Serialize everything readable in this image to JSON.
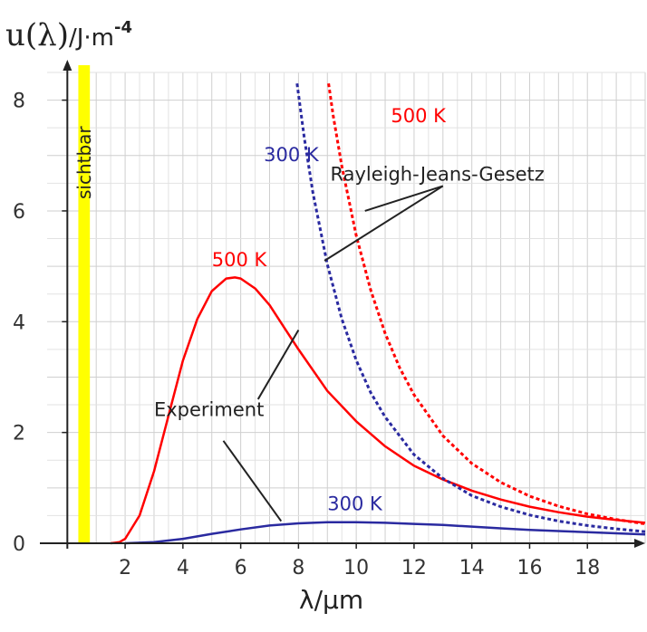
{
  "chart_data": {
    "type": "line",
    "title": "",
    "xlabel": "λ/µm",
    "ylabel_symbol": "u(λ)",
    "ylabel_unit": "/J·m",
    "ylabel_exponent": "-4",
    "xlim": [
      -0.7,
      20
    ],
    "ylim": [
      0,
      8.5
    ],
    "grid": true,
    "x_ticks": [
      2,
      4,
      6,
      8,
      10,
      12,
      14,
      16,
      18
    ],
    "y_ticks": [
      0,
      2,
      4,
      6,
      8
    ],
    "x_tick_labels": [
      "2",
      "4",
      "6",
      "8",
      "10",
      "12",
      "14",
      "16",
      "18"
    ],
    "y_tick_labels": [
      "0",
      "2",
      "4",
      "6",
      "8"
    ],
    "visible_band": {
      "label": "sichtbar",
      "x_range": [
        0.38,
        0.78
      ],
      "color": "#ffff00"
    },
    "series": [
      {
        "name": "500 K",
        "group": "Experiment",
        "style": "solid",
        "color": "#ff0000",
        "x": [
          1.5,
          1.8,
          2,
          2.5,
          3,
          3.5,
          4,
          4.5,
          5,
          5.5,
          5.8,
          6,
          6.5,
          7,
          7.5,
          8,
          9,
          10,
          11,
          12,
          13,
          14,
          15,
          16,
          17,
          18,
          19,
          20
        ],
        "y": [
          0,
          0.02,
          0.08,
          0.5,
          1.3,
          2.3,
          3.3,
          4.05,
          4.55,
          4.78,
          4.8,
          4.78,
          4.6,
          4.3,
          3.9,
          3.5,
          2.75,
          2.2,
          1.75,
          1.4,
          1.15,
          0.95,
          0.79,
          0.66,
          0.56,
          0.48,
          0.42,
          0.37
        ]
      },
      {
        "name": "300 K",
        "group": "Experiment",
        "style": "solid",
        "color": "#2a2aa0",
        "x": [
          2,
          3,
          4,
          5,
          6,
          7,
          8,
          9,
          10,
          11,
          12,
          13,
          14,
          15,
          16,
          17,
          18,
          19,
          20
        ],
        "y": [
          0,
          0.02,
          0.08,
          0.17,
          0.25,
          0.32,
          0.36,
          0.38,
          0.38,
          0.37,
          0.35,
          0.33,
          0.3,
          0.27,
          0.24,
          0.22,
          0.2,
          0.18,
          0.16
        ]
      },
      {
        "name": "500 K",
        "group": "Rayleigh-Jeans-Gesetz",
        "style": "dotted",
        "color": "#ff0000",
        "x": [
          9.04,
          9.2,
          9.5,
          10,
          10.5,
          11,
          11.5,
          12,
          13,
          14,
          15,
          16,
          17,
          18,
          19,
          20
        ],
        "y": [
          8.3,
          7.72,
          6.81,
          5.55,
          4.57,
          3.79,
          3.17,
          2.68,
          1.94,
          1.44,
          1.1,
          0.85,
          0.67,
          0.53,
          0.43,
          0.35
        ]
      },
      {
        "name": "300 K",
        "group": "Rayleigh-Jeans-Gesetz",
        "style": "dotted",
        "color": "#2a2aa0",
        "x": [
          7.95,
          8.2,
          8.5,
          9,
          9.5,
          10,
          10.5,
          11,
          12,
          13,
          14,
          15,
          16,
          17,
          18,
          19,
          20
        ],
        "y": [
          8.3,
          7.32,
          6.33,
          5.03,
          4.05,
          3.3,
          2.72,
          2.28,
          1.6,
          1.17,
          0.86,
          0.66,
          0.51,
          0.4,
          0.32,
          0.26,
          0.21
        ]
      }
    ],
    "annotations": [
      {
        "text": "500 K",
        "series_group": "Rayleigh-Jeans-Gesetz",
        "color": "#ff0000",
        "x": 11.2,
        "y": 7.6
      },
      {
        "text": "300 K",
        "series_group": "Rayleigh-Jeans-Gesetz",
        "color": "#2a2aa0",
        "x": 6.8,
        "y": 6.9
      },
      {
        "text": "Rayleigh-Jeans-Gesetz",
        "color": "#222222",
        "x": 9.1,
        "y": 6.55,
        "pointers": [
          [
            13.0,
            6.45,
            10.3,
            6.0
          ],
          [
            13.0,
            6.45,
            8.9,
            5.1
          ]
        ]
      },
      {
        "text": "500 K",
        "series_group": "Experiment",
        "color": "#ff0000",
        "x": 5.0,
        "y": 5.0
      },
      {
        "text": "Experiment",
        "color": "#222222",
        "x": 3.0,
        "y": 2.3,
        "pointers": [
          [
            6.6,
            2.6,
            8.0,
            3.85
          ],
          [
            5.4,
            1.85,
            7.4,
            0.4
          ]
        ]
      },
      {
        "text": "300 K",
        "series_group": "Experiment",
        "color": "#2a2aa0",
        "x": 9.0,
        "y": 0.6
      }
    ]
  }
}
